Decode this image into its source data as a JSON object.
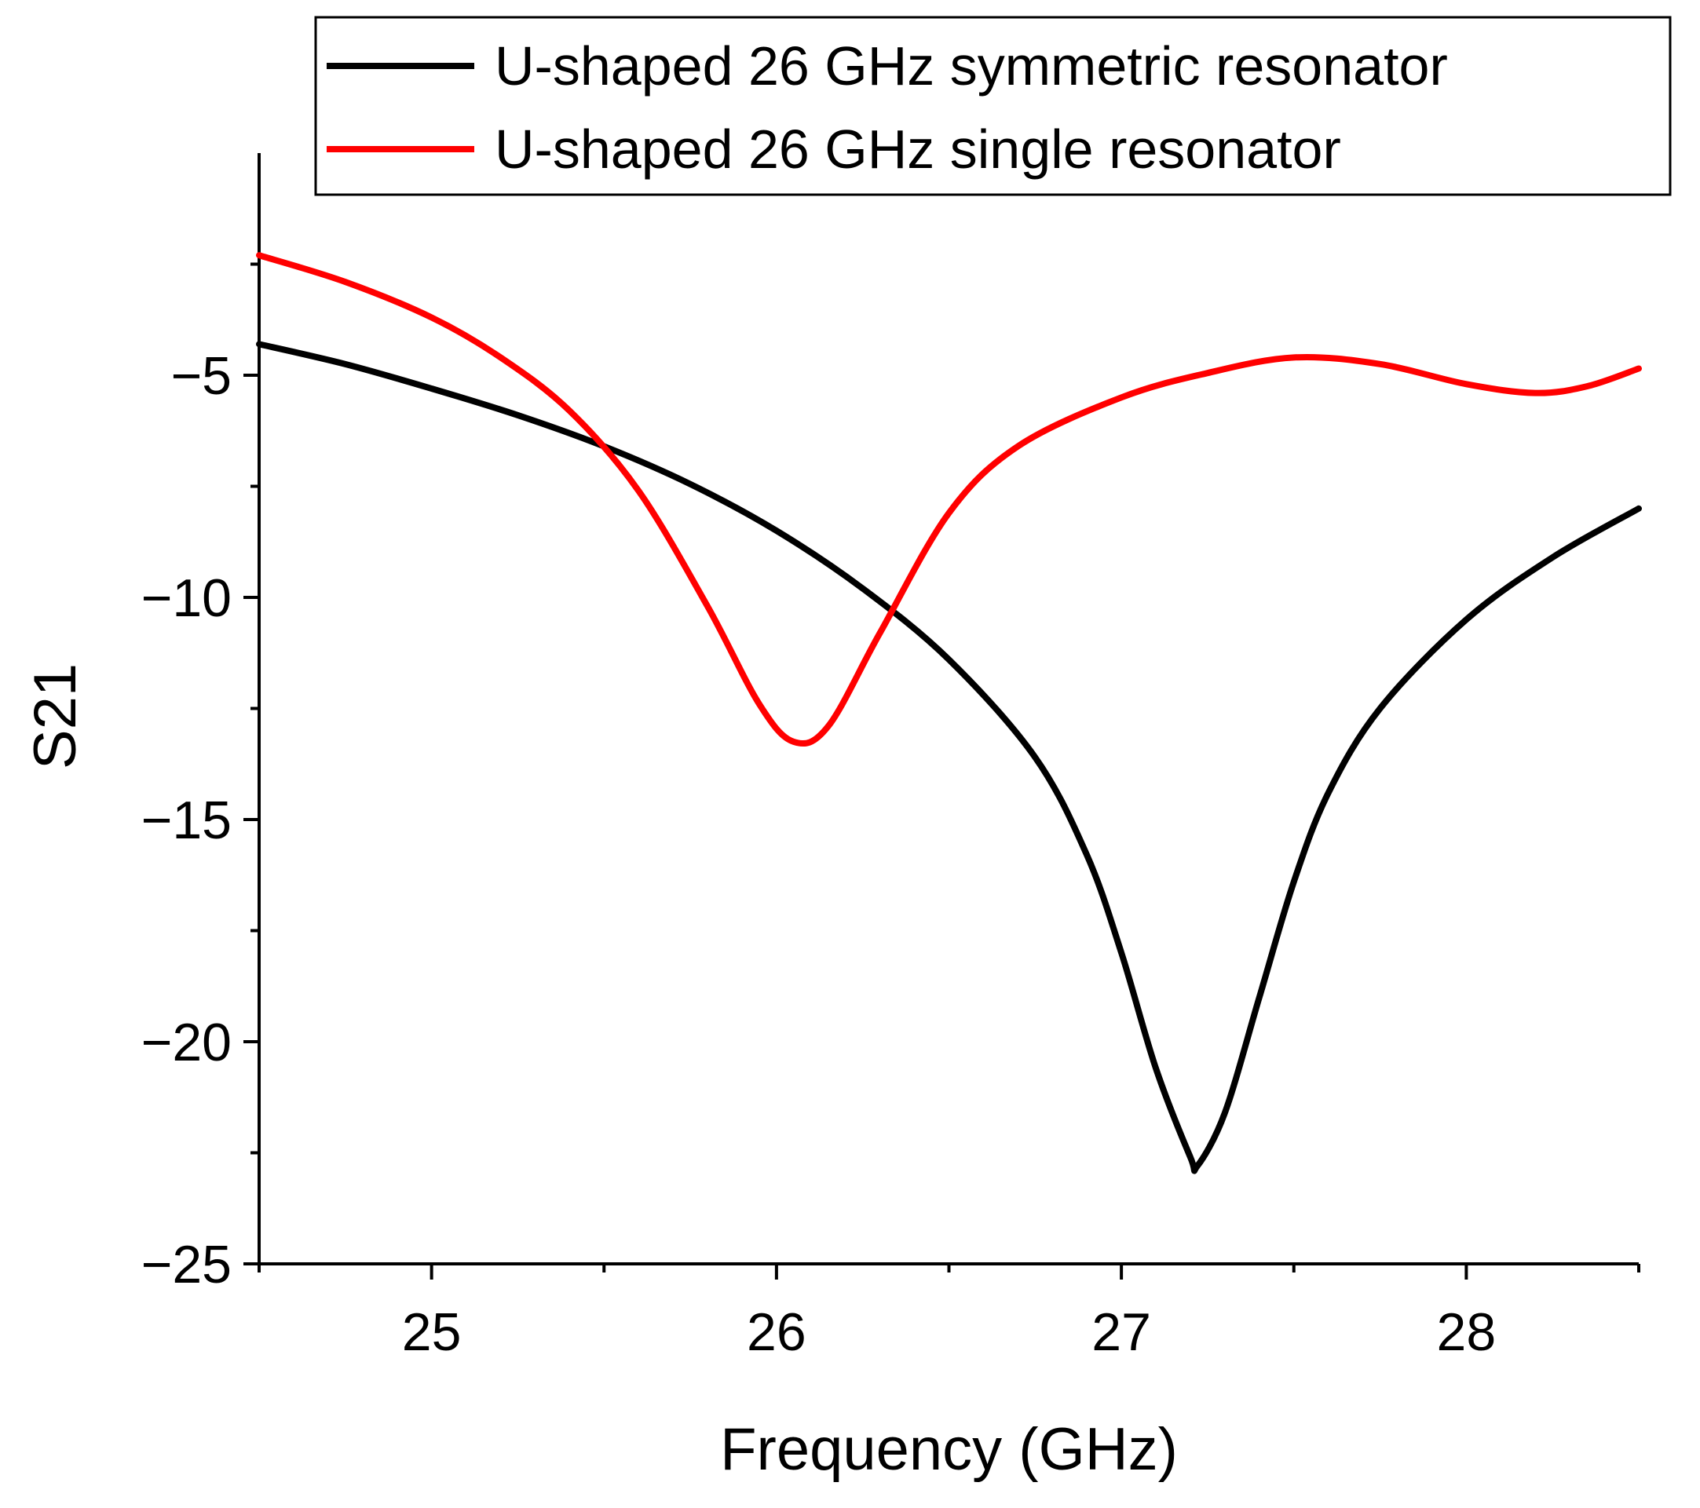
{
  "chart_data": {
    "type": "line",
    "title": "",
    "xlabel": "Frequency (GHz)",
    "ylabel": "S21",
    "xlim": [
      24.5,
      28.5
    ],
    "ylim": [
      -25,
      0
    ],
    "xticks": [
      25,
      26,
      27,
      28
    ],
    "xtick_labels": [
      "25",
      "26",
      "27",
      "28"
    ],
    "yticks": [
      -25,
      -20,
      -15,
      -10,
      -5
    ],
    "ytick_labels": [
      "−25",
      "−20",
      "−15",
      "−10",
      "−5"
    ],
    "x_minor_ticks": [
      24.5,
      25.5,
      26.5,
      27.5,
      28.5
    ],
    "y_minor_ticks": [
      -22.5,
      -17.5,
      -12.5,
      -7.5,
      -2.5
    ],
    "grid": false,
    "legend_position": "top-right",
    "series": [
      {
        "name": "U-shaped 26 GHz symmetric resonator",
        "color": "#000000",
        "x": [
          24.5,
          24.75,
          25.0,
          25.25,
          25.5,
          25.75,
          26.0,
          26.25,
          26.5,
          26.75,
          26.9,
          27.0,
          27.1,
          27.2,
          27.22,
          27.3,
          27.4,
          27.5,
          27.6,
          27.75,
          28.0,
          28.25,
          28.5
        ],
        "y": [
          -4.3,
          -4.75,
          -5.3,
          -5.9,
          -6.6,
          -7.45,
          -8.5,
          -9.8,
          -11.4,
          -13.6,
          -15.8,
          -18.0,
          -20.6,
          -22.6,
          -22.8,
          -21.6,
          -19.0,
          -16.4,
          -14.4,
          -12.5,
          -10.5,
          -9.1,
          -8.0
        ]
      },
      {
        "name": "U-shaped 26 GHz single resonator",
        "color": "#ff0000",
        "x": [
          24.5,
          24.75,
          25.0,
          25.2,
          25.4,
          25.6,
          25.8,
          25.95,
          26.05,
          26.15,
          26.3,
          26.5,
          26.7,
          27.0,
          27.25,
          27.5,
          27.75,
          28.0,
          28.2,
          28.35,
          28.5
        ],
        "y": [
          -2.3,
          -2.9,
          -3.7,
          -4.6,
          -5.8,
          -7.6,
          -10.2,
          -12.4,
          -13.25,
          -12.9,
          -10.8,
          -8.1,
          -6.6,
          -5.5,
          -4.95,
          -4.6,
          -4.75,
          -5.2,
          -5.4,
          -5.25,
          -4.85
        ]
      }
    ]
  }
}
